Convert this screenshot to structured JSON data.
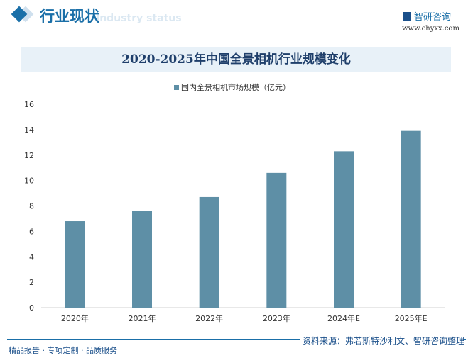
{
  "header": {
    "title": "行业现状",
    "subtitle": "Industry status",
    "logo": "智研咨询",
    "url": "www.chyxx.com"
  },
  "footer": {
    "left": "精品报告 · 专项定制 · 品质服务",
    "source": "资料来源：弗若斯特沙利文、智研咨询整理"
  },
  "chart_data": {
    "type": "bar",
    "title": "2020-2025年中国全景相机行业规模变化",
    "categories": [
      "2020年",
      "2021年",
      "2022年",
      "2023年",
      "2024年E",
      "2025年E"
    ],
    "series": [
      {
        "name": "国内全景相机市场规模（亿元）",
        "values": [
          6.8,
          7.6,
          8.7,
          10.6,
          12.3,
          13.9
        ],
        "color": "#5e8fa6"
      }
    ],
    "ylim": [
      0,
      16
    ],
    "yticks": [
      "0",
      "2",
      "4",
      "6",
      "8",
      "10",
      "12",
      "14",
      "16"
    ],
    "grid": false,
    "legend": "top"
  }
}
